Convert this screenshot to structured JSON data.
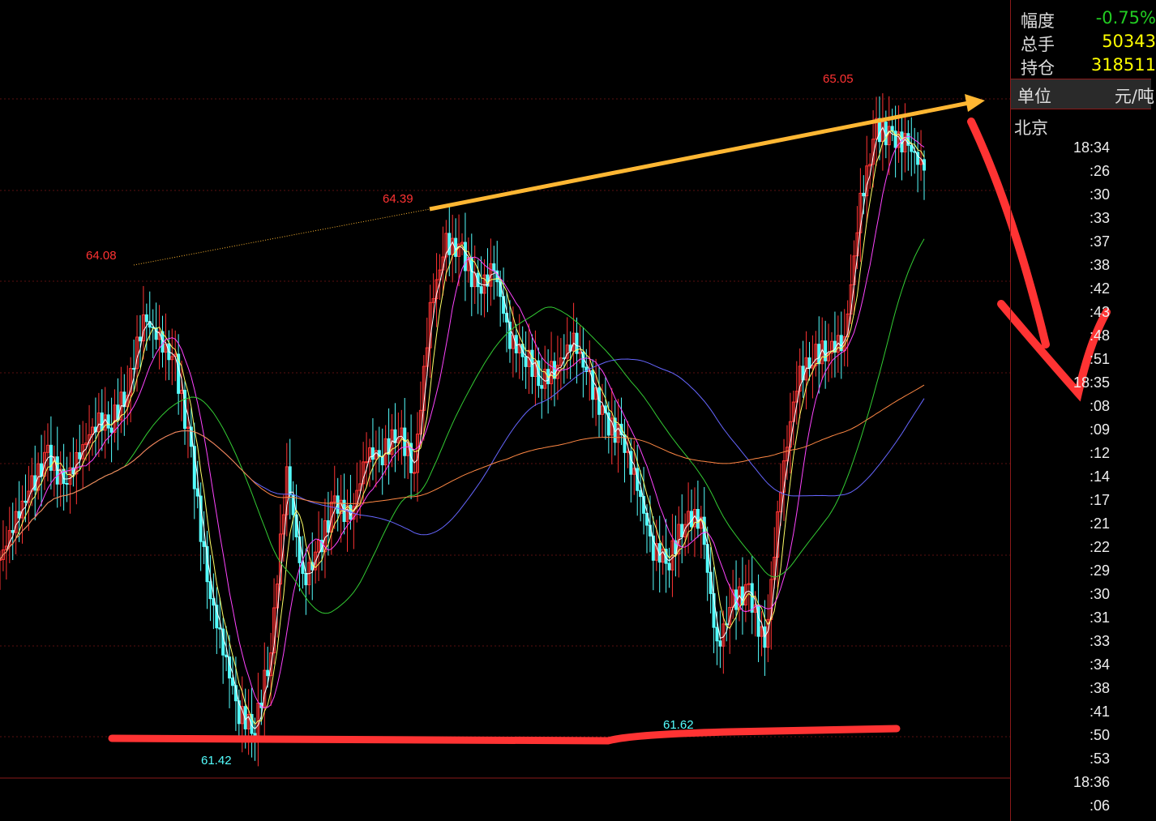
{
  "panel": {
    "rows": [
      {
        "label": "幅度",
        "value": "-0.75%",
        "color": "#22cc22"
      },
      {
        "label": "总手",
        "value": "50343",
        "color": "#ffff00"
      },
      {
        "label": "持仓",
        "value": "318511",
        "color": "#ffff00"
      }
    ],
    "unit_label": "单位",
    "unit_value": "元/吨",
    "city": "北京",
    "times": [
      "18:34",
      ":26",
      ":30",
      ":33",
      ":37",
      ":38",
      ":42",
      ":43",
      ":48",
      ":51",
      "18:35",
      ":08",
      ":09",
      ":12",
      ":14",
      ":17",
      ":21",
      ":22",
      ":29",
      ":30",
      ":31",
      ":33",
      ":34",
      ":38",
      ":41",
      ":50",
      ":53",
      "18:36",
      ":06"
    ]
  },
  "chart_data": {
    "type": "candlestick",
    "ylim": [
      61.2,
      65.6
    ],
    "grid": true,
    "colors": {
      "up": "#ff3333",
      "down": "#54ffff",
      "ma_short": "#ffffff",
      "ma2": "#ffff66",
      "ma3": "#ff44ff",
      "ma4": "#33cc33",
      "ma5": "#6666ff",
      "ma6": "#ff8844",
      "annot_arrow": "#ffb733",
      "annot_line": "#ff3333"
    },
    "closes": [
      62.43,
      62.66,
      62.84,
      63.02,
      62.84,
      63.02,
      63.2,
      63.2,
      63.38,
      63.79,
      63.66,
      63.52,
      63.02,
      62.3,
      61.93,
      61.57,
      61.48,
      61.93,
      62.93,
      62.3,
      62.48,
      62.75,
      62.66,
      63.02,
      63.02,
      63.16,
      62.93,
      63.84,
      64.2,
      64.15,
      63.93,
      64.06,
      63.66,
      63.57,
      63.43,
      63.52,
      63.66,
      63.43,
      63.2,
      63.11,
      62.84,
      62.48,
      62.43,
      62.66,
      62.66,
      61.93,
      62.2,
      62.25,
      61.93,
      62.84,
      63.43,
      63.57,
      63.61,
      63.66,
      64.43,
      64.84,
      64.79,
      64.75,
      64.61
    ],
    "annotations": [
      {
        "text": "64.08",
        "price": 64.08,
        "color": "#ff3333"
      },
      {
        "text": "64.39",
        "price": 64.39,
        "color": "#ff3333"
      },
      {
        "text": "65.05",
        "price": 65.05,
        "color": "#ff3333"
      },
      {
        "text": "61.42",
        "price": 61.42,
        "color": "#54ffff"
      },
      {
        "text": "61.62",
        "price": 61.62,
        "color": "#54ffff"
      }
    ]
  }
}
